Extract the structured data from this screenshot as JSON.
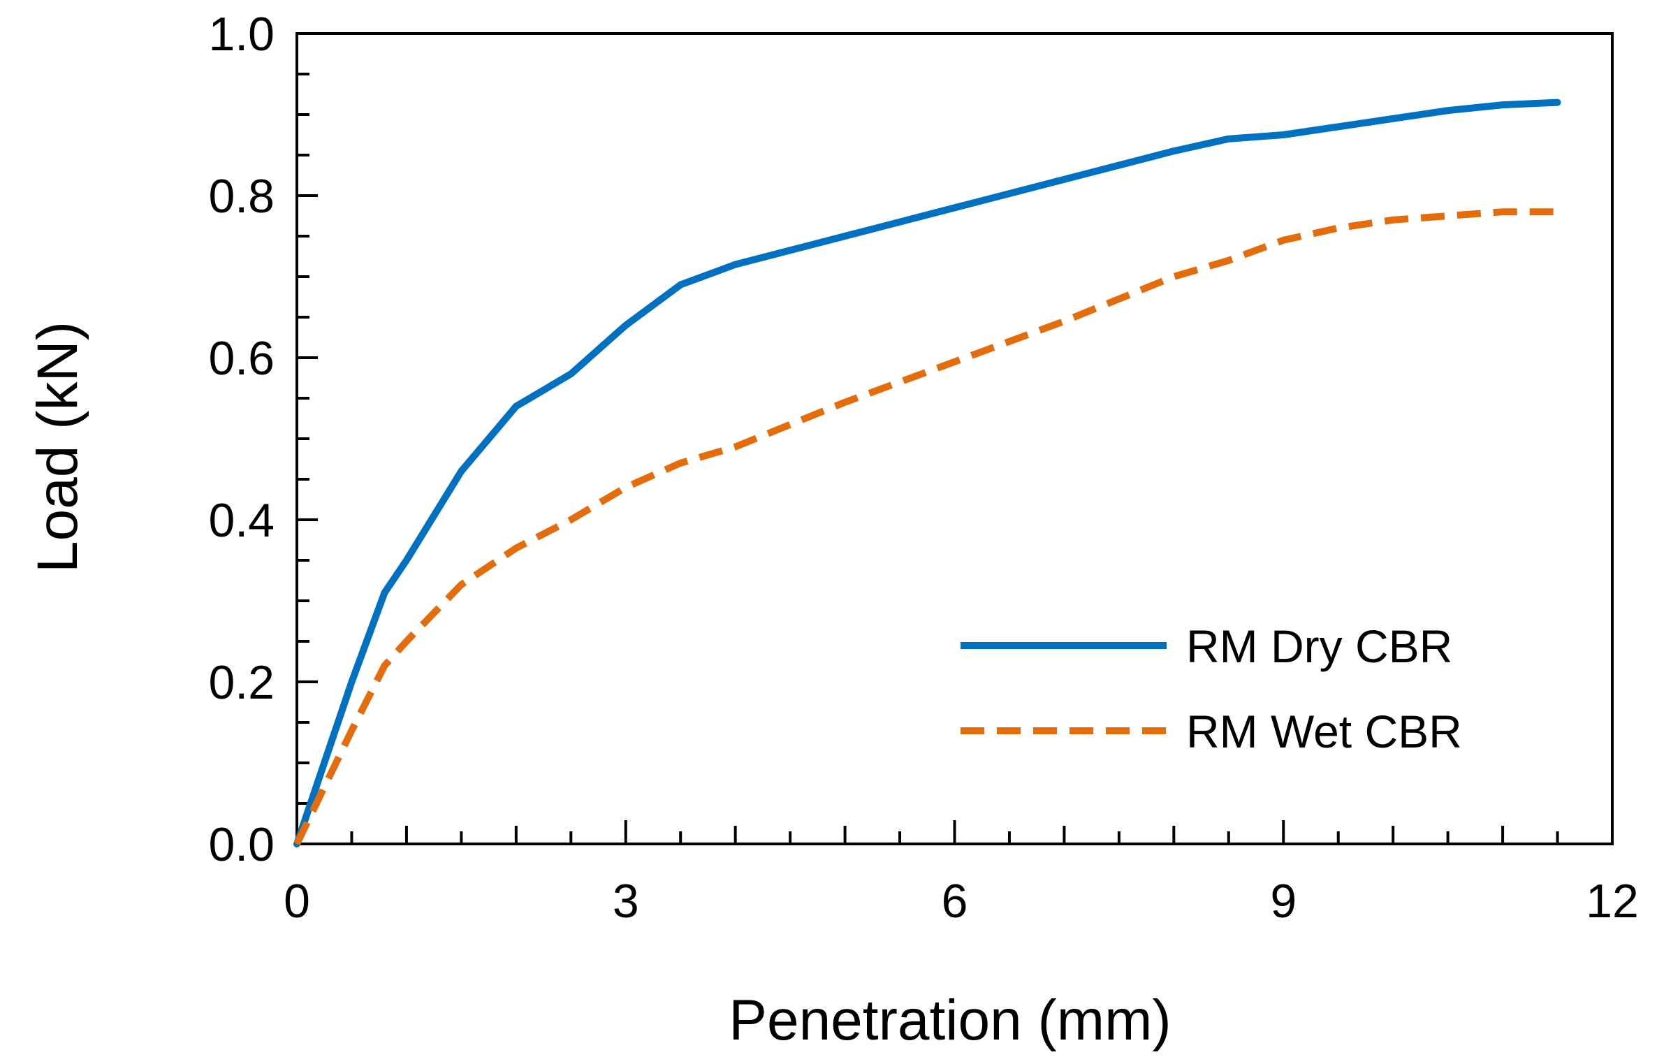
{
  "chart_data": {
    "type": "line",
    "title": "",
    "xlabel": "Penetration (mm)",
    "ylabel": "Load (kN)",
    "xlim": [
      0,
      12
    ],
    "ylim": [
      0,
      1.0
    ],
    "x_ticks": [
      0,
      3,
      6,
      9,
      12
    ],
    "x_tick_labels": [
      "0",
      "3",
      "6",
      "9",
      "12"
    ],
    "y_ticks": [
      0,
      0.2,
      0.4,
      0.6,
      0.8,
      1.0
    ],
    "y_tick_labels": [
      "0.0",
      "0.2",
      "0.4",
      "0.6",
      "0.8",
      "1.0"
    ],
    "grid": false,
    "legend_position": "bottom-right",
    "series": [
      {
        "name": "RM Dry CBR",
        "color": "#0070C0",
        "style": "solid",
        "x": [
          0,
          0.25,
          0.5,
          0.8,
          1.0,
          1.5,
          2.0,
          2.5,
          3.0,
          3.5,
          4.0,
          5.0,
          6.0,
          7.0,
          8.0,
          8.5,
          9.0,
          9.5,
          10.0,
          10.5,
          11.0,
          11.5
        ],
        "y": [
          0,
          0.1,
          0.2,
          0.31,
          0.35,
          0.46,
          0.54,
          0.58,
          0.64,
          0.69,
          0.715,
          0.75,
          0.785,
          0.82,
          0.855,
          0.87,
          0.875,
          0.885,
          0.895,
          0.905,
          0.912,
          0.915
        ]
      },
      {
        "name": "RM Wet CBR",
        "color": "#E46C0A",
        "style": "dashed",
        "x": [
          0,
          0.25,
          0.5,
          0.8,
          1.0,
          1.5,
          2.0,
          2.5,
          3.0,
          3.5,
          4.0,
          5.0,
          6.0,
          7.0,
          8.0,
          8.5,
          9.0,
          9.5,
          10.0,
          10.5,
          11.0,
          11.5
        ],
        "y": [
          0,
          0.07,
          0.14,
          0.22,
          0.25,
          0.32,
          0.365,
          0.4,
          0.44,
          0.47,
          0.49,
          0.545,
          0.595,
          0.645,
          0.7,
          0.72,
          0.745,
          0.76,
          0.77,
          0.775,
          0.78,
          0.78
        ]
      }
    ]
  }
}
